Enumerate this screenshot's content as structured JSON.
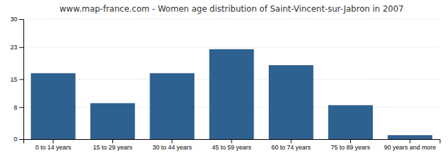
{
  "chart_data": {
    "type": "bar",
    "title": "www.map-france.com - Women age distribution of Saint-Vincent-sur-Jabron in 2007",
    "categories": [
      "0 to 14 years",
      "15 to 29 years",
      "30 to 44 years",
      "45 to 59 years",
      "60 to 74 years",
      "75 to 89 years",
      "90 years and more"
    ],
    "values": [
      16.5,
      9.0,
      16.5,
      22.5,
      18.5,
      8.5,
      1.0
    ],
    "color": "#2e6090",
    "ylim": [
      0,
      30
    ],
    "yticks": [
      0,
      8,
      15,
      23,
      30
    ],
    "grid": true
  }
}
